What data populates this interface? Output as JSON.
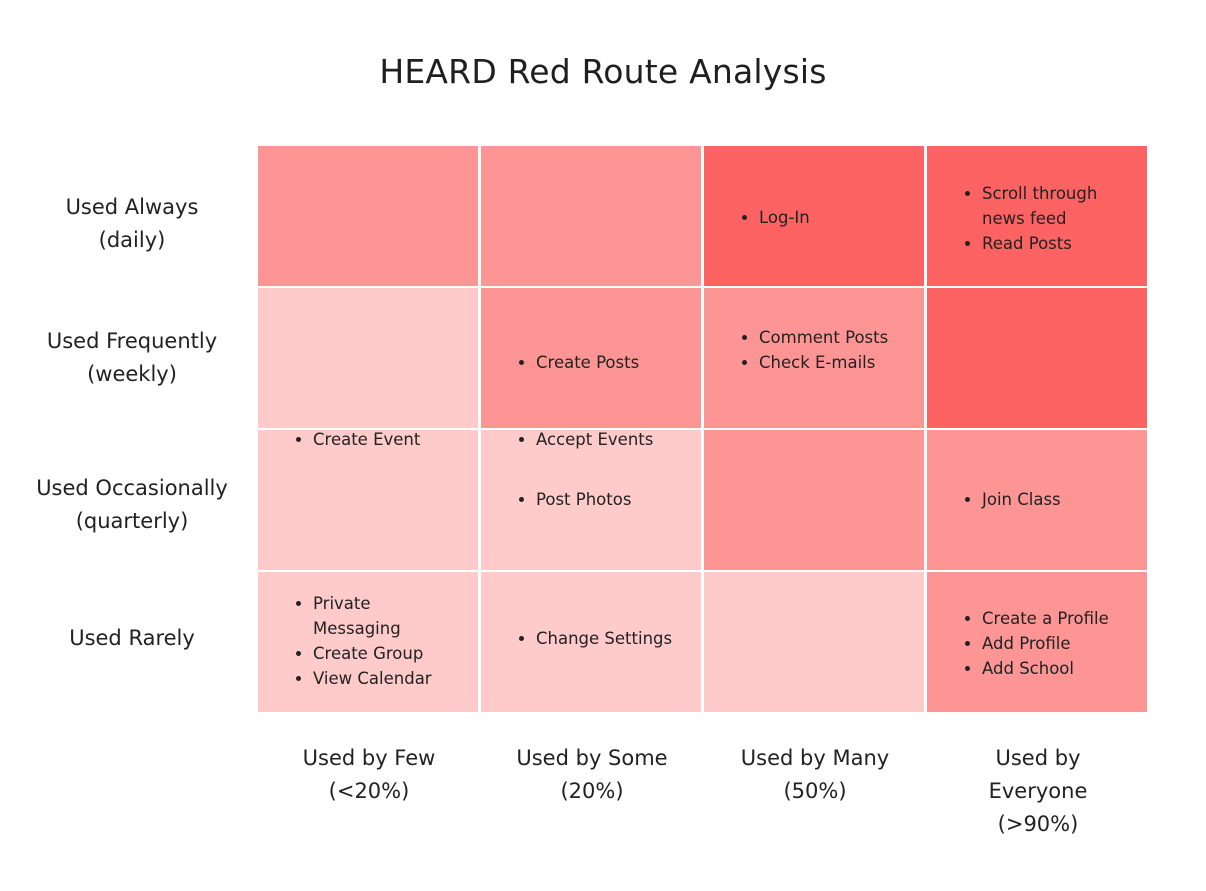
{
  "title": "HEARD Red Route Analysis",
  "rows": [
    {
      "line1": "Used Always",
      "line2": "(daily)"
    },
    {
      "line1": "Used Frequently",
      "line2": "(weekly)"
    },
    {
      "line1": "Used Occasionally",
      "line2": "(quarterly)"
    },
    {
      "line1": "Used Rarely",
      "line2": ""
    }
  ],
  "columns": [
    {
      "line1": "Used by Few",
      "line2": "(<20%)",
      "line3": ""
    },
    {
      "line1": "Used by Some",
      "line2": "(20%)",
      "line3": ""
    },
    {
      "line1": "Used by Many",
      "line2": "(50%)",
      "line3": ""
    },
    {
      "line1": "Used by",
      "line2": "Everyone",
      "line3": "(>90%)"
    }
  ],
  "cells": {
    "r0c0": {
      "color": "#fe9595",
      "items": []
    },
    "r0c1": {
      "color": "#fe9595",
      "items": []
    },
    "r0c2": {
      "color": "#fe6363",
      "items": [
        "Log-In"
      ]
    },
    "r0c3": {
      "color": "#fe6363",
      "items": [
        "Scroll through news feed",
        "Read Posts"
      ]
    },
    "r1c0": {
      "color": "#fecaca",
      "items": []
    },
    "r1c1": {
      "color": "#fe9595",
      "items": [
        "Create Posts"
      ]
    },
    "r1c2": {
      "color": "#fe9595",
      "items": [
        "Comment Posts",
        "Check E-mails"
      ]
    },
    "r1c3": {
      "color": "#fe6363",
      "items": []
    },
    "r2c0": {
      "color": "#fecaca",
      "items": [
        "Create Event"
      ]
    },
    "r2c1": {
      "color": "#fecaca",
      "items": [
        "Accept Events",
        "Post Photos"
      ]
    },
    "r2c2": {
      "color": "#fe9595",
      "items": []
    },
    "r2c3": {
      "color": "#fe9595",
      "items": [
        "Join Class"
      ]
    },
    "r3c0": {
      "color": "#fecaca",
      "items": [
        "Private Messaging",
        "Create Group",
        "View Calendar"
      ]
    },
    "r3c1": {
      "color": "#fecaca",
      "items": [
        "Change Settings"
      ]
    },
    "r3c2": {
      "color": "#fecaca",
      "items": []
    },
    "r3c3": {
      "color": "#fe9595",
      "items": [
        "Create a Profile",
        "Add Profile",
        "Add School"
      ]
    }
  }
}
